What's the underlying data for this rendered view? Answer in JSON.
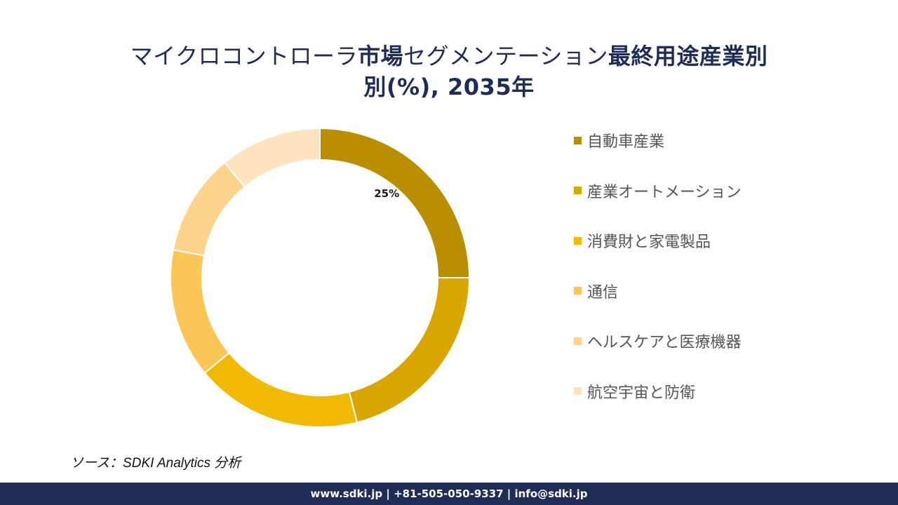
{
  "title": {
    "part1": "マイクロコントローラ",
    "part2": "市場",
    "part3": "セグメンテーション",
    "part4": "最終用途産業別",
    "line2": "別(%), 2035年"
  },
  "chart_data": {
    "type": "pie",
    "title": "マイクロコントローラ市場セグメンテーション最終用途産業別別(%), 2035年",
    "categories": [
      "自動車産業",
      "産業オートメーション",
      "消費財と家電製品",
      "通信",
      "ヘルスケアと医療機器",
      "航空宇宙と防衛"
    ],
    "values": [
      25,
      21,
      18,
      14,
      11,
      11
    ],
    "colors": [
      "#b98f00",
      "#d9a600",
      "#f1ba00",
      "#fcc657",
      "#fcd48d",
      "#fde3be"
    ],
    "data_labels": [
      "25%",
      "",
      "",
      "",
      "",
      ""
    ],
    "donut": true,
    "legend_position": "right"
  },
  "source": "ソース：SDKI Analytics 分析",
  "footer": "www.sdki.jp | +81-505-050-9337 | info@sdki.jp"
}
